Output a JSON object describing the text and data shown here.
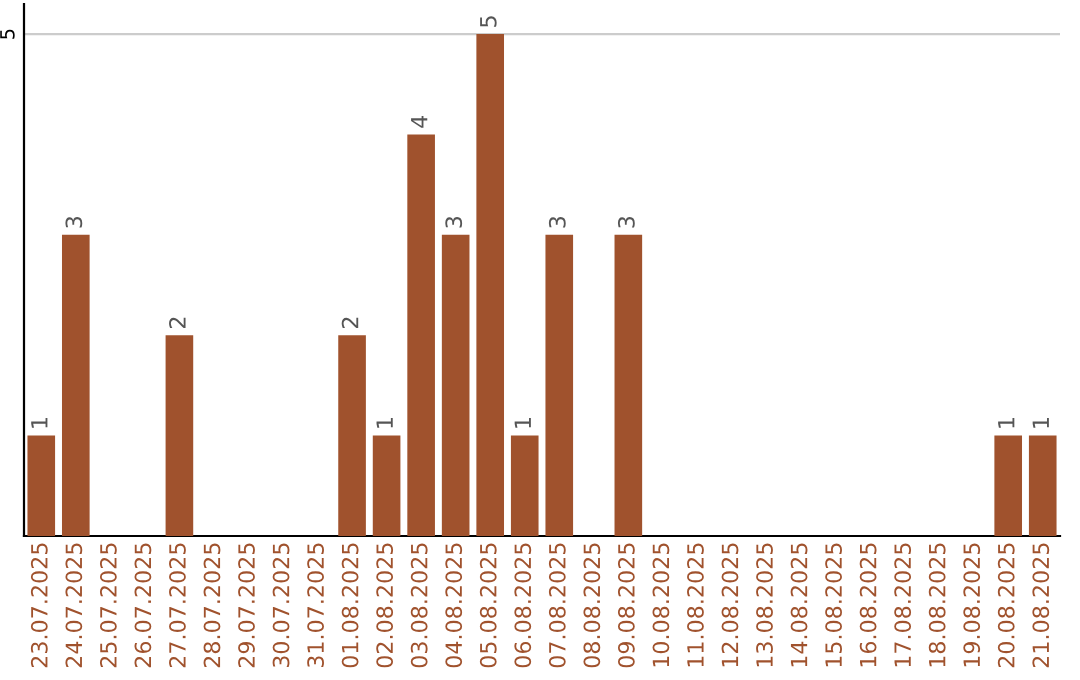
{
  "chart_data": {
    "type": "bar",
    "categories": [
      "23.07.2025",
      "24.07.2025",
      "25.07.2025",
      "26.07.2025",
      "27.07.2025",
      "28.07.2025",
      "29.07.2025",
      "30.07.2025",
      "31.07.2025",
      "01.08.2025",
      "02.08.2025",
      "03.08.2025",
      "04.08.2025",
      "05.08.2025",
      "06.08.2025",
      "07.08.2025",
      "08.08.2025",
      "09.08.2025",
      "10.08.2025",
      "11.08.2025",
      "12.08.2025",
      "13.08.2025",
      "14.08.2025",
      "15.08.2025",
      "16.08.2025",
      "17.08.2025",
      "18.08.2025",
      "19.08.2025",
      "20.08.2025",
      "21.08.2025"
    ],
    "values": [
      1,
      3,
      0,
      0,
      2,
      0,
      0,
      0,
      0,
      2,
      1,
      4,
      3,
      5,
      1,
      3,
      0,
      3,
      0,
      0,
      0,
      0,
      0,
      0,
      0,
      0,
      0,
      0,
      1,
      1
    ],
    "value_labels": [
      "1",
      "3",
      null,
      null,
      "2",
      null,
      null,
      null,
      null,
      "2",
      "1",
      "4",
      "3",
      "5",
      "1",
      "3",
      null,
      "3",
      null,
      null,
      null,
      null,
      null,
      null,
      null,
      null,
      null,
      null,
      "1",
      "1"
    ],
    "color": "#a0522d",
    "ylim": [
      0,
      5.3
    ],
    "yticks": [
      5
    ],
    "grid": "y"
  }
}
